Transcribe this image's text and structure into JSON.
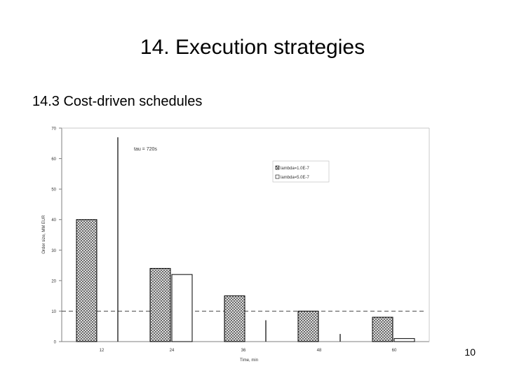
{
  "slide": {
    "title": "14. Execution strategies",
    "subtitle": "14.3 Cost-driven schedules",
    "page_number": "10"
  },
  "chart_data": {
    "type": "bar",
    "title": "",
    "xlabel": "Time, min",
    "ylabel": "Order size, MM EUR",
    "categories": [
      "12",
      "24",
      "36",
      "48",
      "60"
    ],
    "yticks": [
      "0",
      "10",
      "20",
      "30",
      "40",
      "50",
      "60",
      "70"
    ],
    "ylim": [
      0,
      70
    ],
    "series": [
      {
        "name": "lambda=1.0E-7",
        "values": [
          40,
          24,
          15,
          10,
          8
        ],
        "pattern": "crosshatch"
      },
      {
        "name": "lambda=5.0E-7",
        "values": [
          null,
          22,
          null,
          null,
          1
        ],
        "pattern": "none"
      }
    ],
    "reference_line": {
      "y": 10,
      "style": "dashed"
    },
    "vertical_markers": [
      {
        "after_category": "12",
        "value": 67
      },
      {
        "after_category": "36",
        "value": 7
      },
      {
        "after_category": "48",
        "value": 2.5
      }
    ],
    "annotation": "tau = 720s",
    "legend_position": "upper-right",
    "grid": false,
    "colors": {
      "axis": "#7f7f7f",
      "bar_stroke": "#000000",
      "hatch": "#555555"
    }
  }
}
